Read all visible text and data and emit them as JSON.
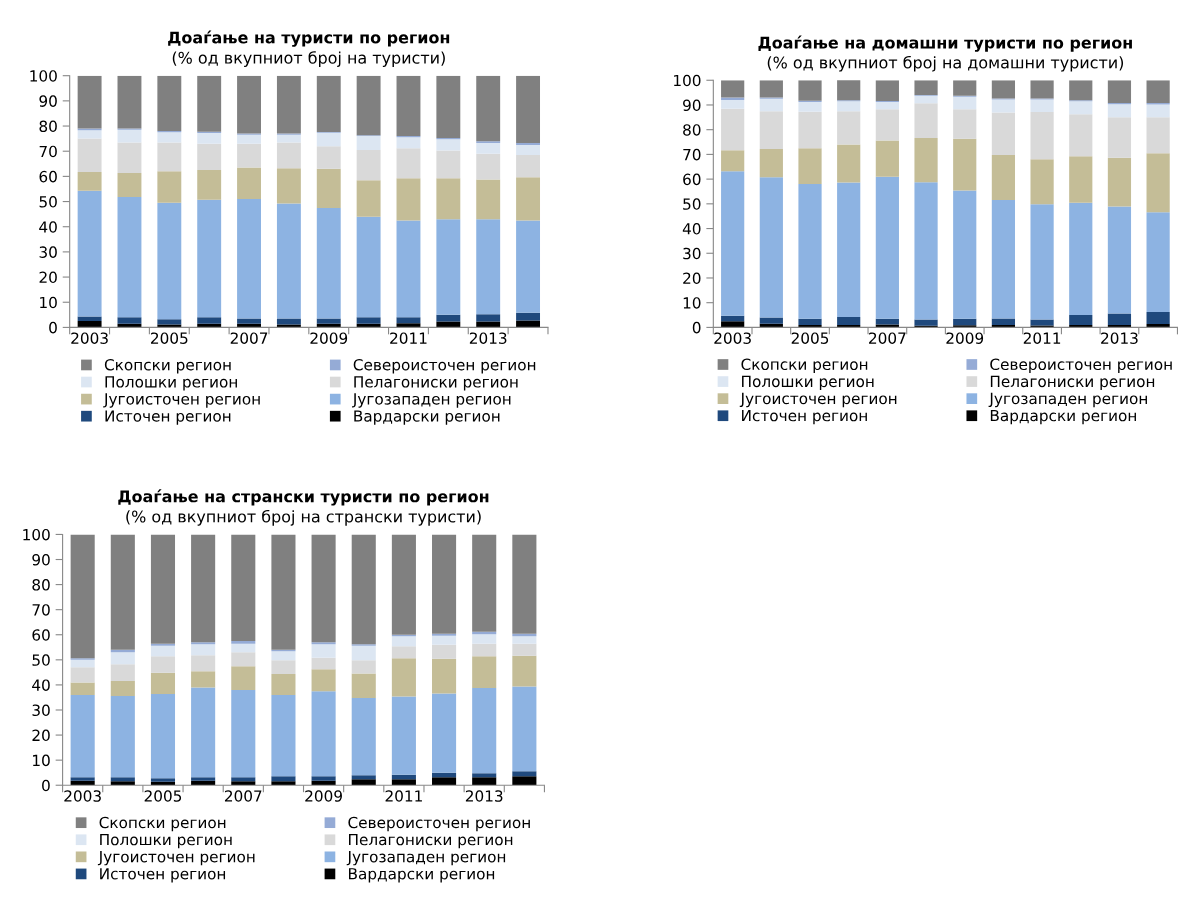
{
  "chart_data": [
    {
      "type": "bar",
      "stacked": true,
      "title": "Доаѓање на туристи по регион",
      "subtitle": "(% од вкупниот број на туристи)",
      "categories": [
        "2003",
        null,
        "2005",
        null,
        "2007",
        null,
        "2009",
        null,
        "2011",
        null,
        "2013",
        null
      ],
      "ylim": [
        0,
        100
      ],
      "yticks": [
        0,
        10,
        20,
        30,
        40,
        50,
        60,
        70,
        80,
        90,
        100
      ],
      "legend": "bottom",
      "grid": false,
      "series": [
        {
          "name": "Вардарски регион",
          "color": "#000000",
          "values": [
            2.5,
            1.5,
            1.2,
            1.5,
            1.5,
            1.2,
            1.5,
            1.5,
            1.7,
            2.3,
            2.3,
            2.7
          ]
        },
        {
          "name": "Источен регион",
          "color": "#1f497d",
          "values": [
            1.8,
            2.5,
            2.0,
            2.5,
            2.0,
            2.3,
            2.0,
            2.5,
            2.3,
            2.7,
            2.9,
            3.1
          ]
        },
        {
          "name": "Југозападен регион",
          "color": "#8db3e2",
          "values": [
            50.0,
            47.8,
            46.3,
            46.7,
            47.5,
            45.7,
            43.9,
            40.0,
            38.5,
            38.0,
            37.8,
            36.7
          ]
        },
        {
          "name": "Југоисточен регион",
          "color": "#c4bd97",
          "values": [
            7.4,
            9.5,
            12.5,
            11.8,
            12.5,
            14.0,
            15.6,
            14.5,
            16.8,
            16.3,
            15.8,
            17.2
          ]
        },
        {
          "name": "Пелагониски регион",
          "color": "#d9d9d9",
          "values": [
            13.3,
            12.2,
            11.5,
            10.5,
            9.5,
            10.3,
            9.0,
            12.0,
            11.9,
            11.0,
            10.2,
            8.8
          ]
        },
        {
          "name": "Полошки регион",
          "color": "#dce6f2",
          "values": [
            3.3,
            5.0,
            4.0,
            4.2,
            3.5,
            3.0,
            5.3,
            5.5,
            4.3,
            4.5,
            4.3,
            4.0
          ]
        },
        {
          "name": "Североисточен регион",
          "color": "#95abd6",
          "values": [
            0.7,
            0.5,
            0.5,
            0.5,
            0.5,
            0.5,
            0.3,
            0.3,
            0.5,
            0.4,
            0.7,
            0.8
          ]
        },
        {
          "name": "Скопски регион",
          "color": "#808080",
          "values": [
            21.0,
            21.0,
            22.0,
            22.3,
            23.0,
            23.0,
            22.4,
            23.7,
            24.0,
            24.8,
            26.0,
            26.7
          ]
        }
      ]
    },
    {
      "type": "bar",
      "stacked": true,
      "title": "Доаѓање на домашни туристи по регион",
      "subtitle": "(% од вкупниот број на домашни туристи)",
      "categories": [
        "2003",
        null,
        "2005",
        null,
        "2007",
        null,
        "2009",
        null,
        "2011",
        null,
        "2013",
        null
      ],
      "ylim": [
        0,
        100
      ],
      "yticks": [
        0,
        10,
        20,
        30,
        40,
        50,
        60,
        70,
        80,
        90,
        100
      ],
      "legend": "bottom",
      "grid": false,
      "series": [
        {
          "name": "Вардарски регион",
          "color": "#000000",
          "values": [
            2.5,
            1.5,
            1.0,
            1.0,
            1.2,
            0.7,
            0.9,
            1.0,
            0.8,
            1.0,
            1.0,
            1.4
          ]
        },
        {
          "name": "Источен регион",
          "color": "#1f497d",
          "values": [
            2.2,
            2.5,
            2.5,
            3.2,
            2.3,
            2.5,
            2.6,
            2.6,
            2.4,
            4.0,
            4.6,
            4.8
          ]
        },
        {
          "name": "Југозападен регион",
          "color": "#8db3e2",
          "values": [
            58.5,
            56.8,
            54.5,
            54.4,
            57.5,
            55.5,
            51.9,
            47.9,
            46.6,
            45.4,
            43.3,
            40.4
          ]
        },
        {
          "name": "Југоисточен регион",
          "color": "#c4bd97",
          "values": [
            8.5,
            11.4,
            14.5,
            15.4,
            14.6,
            17.9,
            20.9,
            18.3,
            18.2,
            18.9,
            19.7,
            23.9
          ]
        },
        {
          "name": "Пелагониски регион",
          "color": "#d9d9d9",
          "values": [
            16.8,
            15.3,
            14.8,
            13.5,
            12.7,
            14.1,
            12.0,
            17.2,
            19.2,
            16.9,
            16.4,
            14.5
          ]
        },
        {
          "name": "Полошки регион",
          "color": "#dce6f2",
          "values": [
            3.5,
            5.0,
            3.9,
            4.0,
            2.9,
            3.0,
            5.0,
            5.2,
            5.0,
            5.3,
            5.3,
            5.2
          ]
        },
        {
          "name": "Североисточен регион",
          "color": "#95abd6",
          "values": [
            1.0,
            0.5,
            0.5,
            0.4,
            0.4,
            0.3,
            0.4,
            0.4,
            0.4,
            0.4,
            0.5,
            0.6
          ]
        },
        {
          "name": "Скопски регион",
          "color": "#808080",
          "values": [
            7.0,
            7.0,
            8.3,
            8.2,
            8.4,
            6.0,
            6.3,
            7.4,
            7.4,
            8.1,
            9.2,
            9.2
          ]
        }
      ]
    },
    {
      "type": "bar",
      "stacked": true,
      "title": "Доаѓање на странски туристи по регион",
      "subtitle": "(% од вкупниот број на странски туристи)",
      "categories": [
        "2003",
        null,
        "2005",
        null,
        "2007",
        null,
        "2009",
        null,
        "2011",
        null,
        "2013",
        null
      ],
      "ylim": [
        0,
        100
      ],
      "yticks": [
        0,
        10,
        20,
        30,
        40,
        50,
        60,
        70,
        80,
        90,
        100
      ],
      "legend": "bottom",
      "grid": false,
      "series": [
        {
          "name": "Вардарски регион",
          "color": "#000000",
          "values": [
            1.8,
            1.6,
            1.4,
            1.8,
            1.6,
            1.6,
            1.8,
            2.4,
            2.4,
            3.2,
            3.2,
            3.6
          ]
        },
        {
          "name": "Источен регион",
          "color": "#1f497d",
          "values": [
            1.4,
            1.6,
            1.4,
            1.4,
            1.6,
            2.0,
            1.8,
            1.6,
            1.8,
            1.8,
            1.6,
            2.0
          ]
        },
        {
          "name": "Југозападен регион",
          "color": "#8db3e2",
          "values": [
            32.8,
            32.4,
            33.6,
            35.8,
            34.8,
            32.4,
            33.9,
            30.8,
            31.2,
            31.6,
            34.0,
            33.8
          ]
        },
        {
          "name": "Југоисточен регион",
          "color": "#c4bd97",
          "values": [
            5.0,
            6.0,
            8.4,
            6.4,
            9.4,
            8.4,
            8.7,
            9.8,
            15.2,
            13.8,
            12.6,
            12.2
          ]
        },
        {
          "name": "Пелагониски регион",
          "color": "#d9d9d9",
          "values": [
            6.0,
            6.6,
            6.6,
            6.4,
            5.6,
            5.4,
            4.6,
            5.2,
            4.8,
            5.6,
            5.0,
            4.8
          ]
        },
        {
          "name": "Полошки регион",
          "color": "#dce6f2",
          "values": [
            3.0,
            4.8,
            4.2,
            4.4,
            3.4,
            3.6,
            5.4,
            5.8,
            4.0,
            3.6,
            3.8,
            3.0
          ]
        },
        {
          "name": "Североисточен регион",
          "color": "#95abd6",
          "values": [
            0.6,
            1.0,
            0.8,
            0.8,
            1.1,
            0.6,
            0.8,
            0.6,
            0.6,
            0.8,
            1.0,
            1.0
          ]
        },
        {
          "name": "Скопски регион",
          "color": "#808080",
          "values": [
            49.4,
            46.0,
            43.6,
            43.0,
            42.5,
            46.0,
            43.0,
            43.8,
            40.0,
            39.6,
            38.8,
            39.6
          ]
        }
      ]
    }
  ]
}
